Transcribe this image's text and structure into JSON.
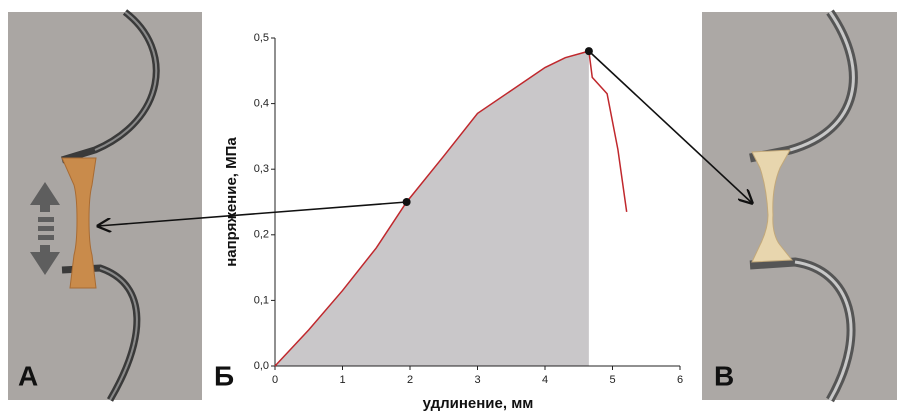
{
  "chart_data": {
    "type": "line",
    "x_label": "удлинение, мм",
    "y_label": "напряжение, МПа",
    "panel_labels": [
      "А",
      "Б",
      "В"
    ],
    "x": [
      0,
      0.5,
      1,
      1.5,
      1.95,
      2.5,
      3,
      3.5,
      4,
      4.3,
      4.65,
      4.7,
      4.92,
      5.08,
      5.21
    ],
    "values": [
      0,
      0.055,
      0.115,
      0.18,
      0.25,
      0.32,
      0.385,
      0.42,
      0.455,
      0.47,
      0.48,
      0.44,
      0.415,
      0.33,
      0.235
    ],
    "color": "#c0282d",
    "area_color": "#c9c7c9",
    "xlim": [
      0,
      6
    ],
    "xticks": [
      0,
      1,
      2,
      3,
      4,
      5,
      6
    ],
    "ylim": [
      0,
      0.5
    ],
    "yticks": [
      {
        "value": 0,
        "label": "0,0"
      },
      {
        "value": 0.1,
        "label": "0,1"
      },
      {
        "value": 0.2,
        "label": "0,2"
      },
      {
        "value": 0.3,
        "label": "0,3"
      },
      {
        "value": 0.4,
        "label": "0,4"
      },
      {
        "value": 0.5,
        "label": "0,5"
      }
    ]
  }
}
